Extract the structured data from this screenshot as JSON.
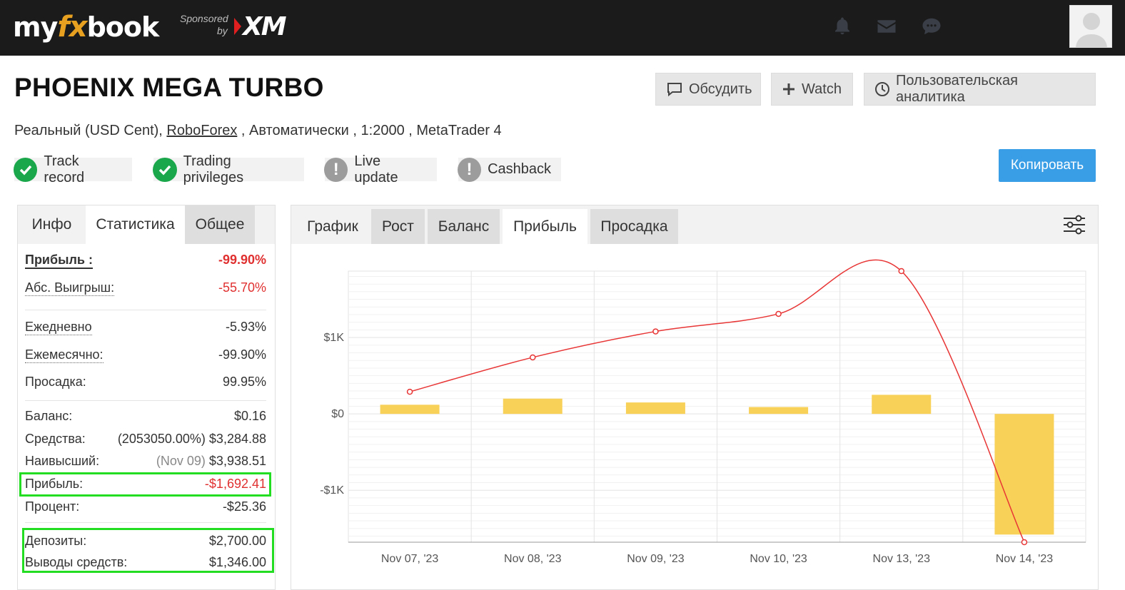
{
  "topbar": {
    "logo_my": "my",
    "logo_fx": "fx",
    "logo_book": "book",
    "sponsored": "Sponsored",
    "by": "by",
    "sponsor_brand": "XM",
    "icons": [
      "bell-icon",
      "envelope-icon",
      "chat-icon"
    ]
  },
  "header": {
    "title": "PHOENIX MEGA TURBO",
    "account_type": "Реальный (USD Cent),",
    "broker": "RoboForex",
    "details": " , Автоматически , 1:2000 , MetaTrader 4",
    "buttons": {
      "discuss": "Обсудить",
      "watch": "Watch",
      "analytics": "Пользовательская аналитика",
      "copy": "Копировать"
    },
    "badges": [
      {
        "label": "Track record",
        "status": "ok"
      },
      {
        "label": "Trading privileges",
        "status": "ok"
      },
      {
        "label": "Live update",
        "status": "warning"
      },
      {
        "label": "Cashback",
        "status": "warning"
      }
    ]
  },
  "left_panel": {
    "tabs": [
      "Инфо",
      "Статистика",
      "Общее"
    ],
    "stats": {
      "profit_label": "Прибыль :",
      "profit_value": "-99.90%",
      "abs_gain_label": "Абс. Выигрыш:",
      "abs_gain_value": "-55.70%",
      "daily_label": "Ежедневно",
      "daily_value": "-5.93%",
      "monthly_label": "Ежемесячно:",
      "monthly_value": "-99.90%",
      "drawdown_label": "Просадка:",
      "drawdown_value": "99.95%",
      "balance_label": "Баланс:",
      "balance_value": "$0.16",
      "equity_label": "Средства:",
      "equity_pct": "(2053050.00%)",
      "equity_value": "$3,284.88",
      "highest_label": "Наивысший:",
      "highest_date": "(Nov 09)",
      "highest_value": "$3,938.51",
      "profit_amt_label": "Прибыль:",
      "profit_amt_value": "-$1,692.41",
      "interest_label": "Процент:",
      "interest_value": "-$25.36",
      "deposits_label": "Депозиты:",
      "deposits_value": "$2,700.00",
      "withdrawals_label": "Выводы средств:",
      "withdrawals_value": "$1,346.00"
    }
  },
  "right_panel": {
    "tabs": [
      "График",
      "Рост",
      "Баланс",
      "Прибыль",
      "Просадка"
    ],
    "active_tab": "Прибыль"
  },
  "chart_data": {
    "type": "bar",
    "categories": [
      "Nov 07, '23",
      "Nov 08, '23",
      "Nov 09, '23",
      "Nov 10, '23",
      "Nov 13, '23",
      "Nov 14, '23"
    ],
    "y_ticks": [
      "$1K",
      "$0",
      "-$1K"
    ],
    "ylim": [
      -1680,
      1870
    ],
    "series": [
      {
        "kind": "bar",
        "values": [
          120,
          200,
          150,
          90,
          250,
          -1580
        ],
        "color": "#f8d158"
      },
      {
        "kind": "line",
        "values": [
          290,
          740,
          1080,
          1310,
          1870,
          -1680
        ],
        "color": "#e83535"
      }
    ],
    "grid": true
  }
}
